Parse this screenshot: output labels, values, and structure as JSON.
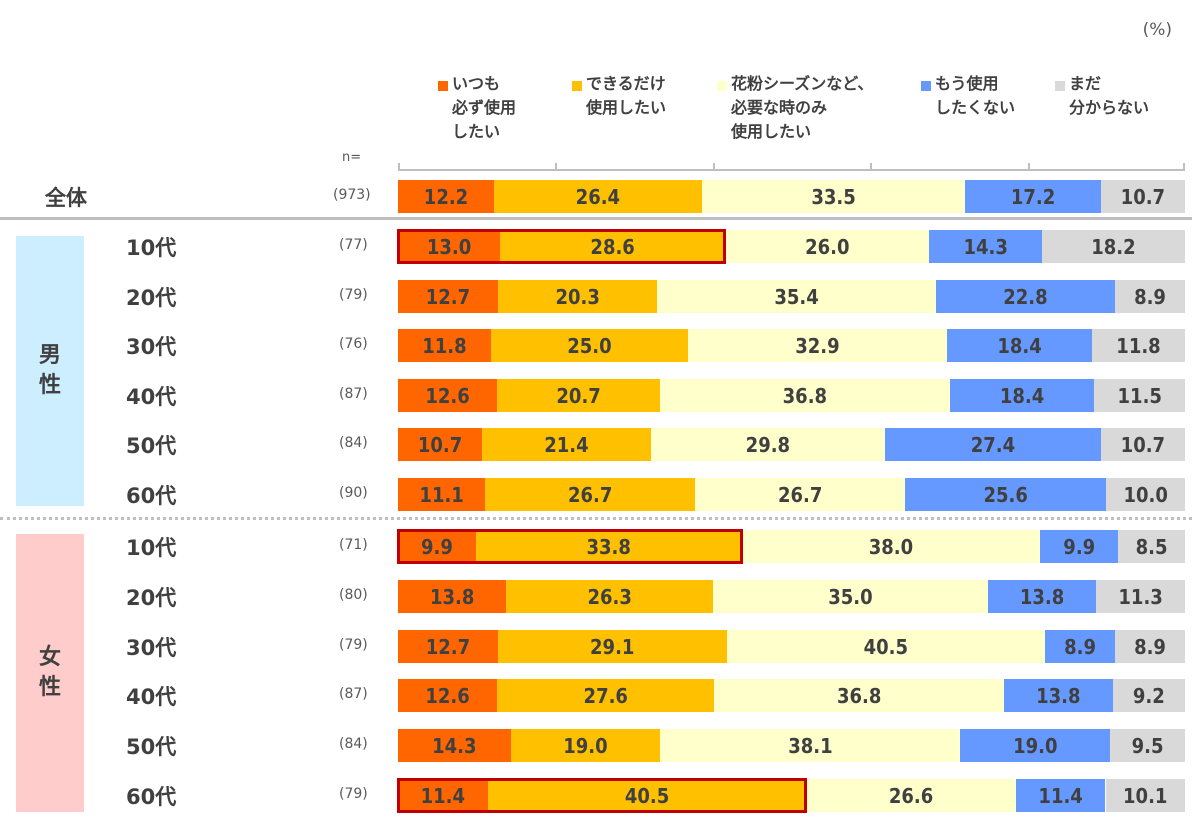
{
  "unit_label": "(%)",
  "n_header": "n=",
  "colors": [
    "#ff6600",
    "#ffc000",
    "#ffffcc",
    "#6699ff",
    "#d9d9d9"
  ],
  "highlight_color": "#c00000",
  "gender_groups": [
    {
      "label": "男\n性",
      "color": "#cceeff"
    },
    {
      "label": "女\n性",
      "color": "#ffcccc"
    }
  ],
  "chart_data": {
    "type": "bar",
    "orientation": "horizontal",
    "stacked": true,
    "percent_100": true,
    "unit": "%",
    "xlim": [
      0,
      100
    ],
    "ticks": [
      0,
      20,
      40,
      60,
      80,
      100
    ],
    "legend": [
      "いつも\n必ず使用\nしたい",
      "できるだけ\n使用したい",
      "花粉シーズンなど、\n必要な時のみ\n使用したい",
      "もう使用\nしたくない",
      "まだ\n分からない"
    ],
    "legend_placement": "top",
    "categories": [
      {
        "group": "",
        "label": "全体",
        "n": "(973)",
        "values": [
          12.2,
          26.4,
          33.5,
          17.2,
          10.7
        ],
        "highlight": false
      },
      {
        "group": "男性",
        "label": "10代",
        "n": "(77)",
        "values": [
          13.0,
          28.6,
          26.0,
          14.3,
          18.2
        ],
        "highlight": true
      },
      {
        "group": "男性",
        "label": "20代",
        "n": "(79)",
        "values": [
          12.7,
          20.3,
          35.4,
          22.8,
          8.9
        ],
        "highlight": false
      },
      {
        "group": "男性",
        "label": "30代",
        "n": "(76)",
        "values": [
          11.8,
          25.0,
          32.9,
          18.4,
          11.8
        ],
        "highlight": false
      },
      {
        "group": "男性",
        "label": "40代",
        "n": "(87)",
        "values": [
          12.6,
          20.7,
          36.8,
          18.4,
          11.5
        ],
        "highlight": false
      },
      {
        "group": "男性",
        "label": "50代",
        "n": "(84)",
        "values": [
          10.7,
          21.4,
          29.8,
          27.4,
          10.7
        ],
        "highlight": false
      },
      {
        "group": "男性",
        "label": "60代",
        "n": "(90)",
        "values": [
          11.1,
          26.7,
          26.7,
          25.6,
          10.0
        ],
        "highlight": false
      },
      {
        "group": "女性",
        "label": "10代",
        "n": "(71)",
        "values": [
          9.9,
          33.8,
          38.0,
          9.9,
          8.5
        ],
        "highlight": true
      },
      {
        "group": "女性",
        "label": "20代",
        "n": "(80)",
        "values": [
          13.8,
          26.3,
          35.0,
          13.8,
          11.3
        ],
        "highlight": false
      },
      {
        "group": "女性",
        "label": "30代",
        "n": "(79)",
        "values": [
          12.7,
          29.1,
          40.5,
          8.9,
          8.9
        ],
        "highlight": false
      },
      {
        "group": "女性",
        "label": "40代",
        "n": "(87)",
        "values": [
          12.6,
          27.6,
          36.8,
          13.8,
          9.2
        ],
        "highlight": false
      },
      {
        "group": "女性",
        "label": "50代",
        "n": "(84)",
        "values": [
          14.3,
          19.0,
          38.1,
          19.0,
          9.5
        ],
        "highlight": false
      },
      {
        "group": "女性",
        "label": "60代",
        "n": "(79)",
        "values": [
          11.4,
          40.5,
          26.6,
          11.4,
          10.1
        ],
        "highlight": true
      }
    ],
    "highlight_segments": [
      0,
      1
    ]
  }
}
